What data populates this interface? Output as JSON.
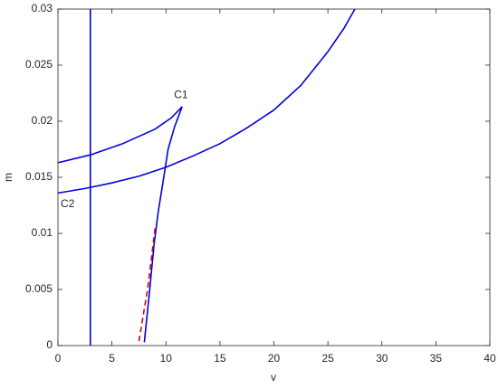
{
  "chart_data": {
    "type": "line",
    "xlabel": "v",
    "ylabel": "m",
    "xlim": [
      0,
      40
    ],
    "ylim": [
      0,
      0.03
    ],
    "xticks": [
      0,
      5,
      10,
      15,
      20,
      25,
      30,
      35,
      40
    ],
    "yticks": [
      0,
      0.005,
      0.01,
      0.015,
      0.02,
      0.025,
      0.03
    ],
    "grid": false,
    "series": [
      {
        "color": "#0000dd",
        "dash": false,
        "x": [
          3,
          3
        ],
        "values": [
          0,
          0.03
        ]
      },
      {
        "color": "#0000dd",
        "dash": false,
        "x": [
          0,
          2.5,
          5,
          7.5,
          10,
          12.5,
          15,
          17.5,
          20,
          22.5,
          25,
          26.5,
          27.5
        ],
        "values": [
          0.0136,
          0.014,
          0.0145,
          0.0151,
          0.0159,
          0.0169,
          0.018,
          0.0194,
          0.021,
          0.0232,
          0.0262,
          0.0283,
          0.03
        ]
      },
      {
        "color": "#0000dd",
        "dash": false,
        "x": [
          0,
          3,
          6,
          9,
          10.5,
          11.5,
          10.8,
          10.2,
          9.8,
          9.3,
          8.9,
          8.5,
          8.0
        ],
        "values": [
          0.0163,
          0.017,
          0.018,
          0.0193,
          0.0203,
          0.0213,
          0.0195,
          0.0175,
          0.015,
          0.012,
          0.009,
          0.005,
          0.0003
        ]
      },
      {
        "color": "#dd0000",
        "dash": true,
        "x": [
          7.5,
          8.3,
          9.0
        ],
        "values": [
          0.0004,
          0.005,
          0.0105
        ]
      }
    ],
    "annotations": [
      {
        "text": "C1",
        "x": 11.4,
        "y": 0.0223
      },
      {
        "text": "C2",
        "x": 0.9,
        "y": 0.0126
      }
    ]
  }
}
